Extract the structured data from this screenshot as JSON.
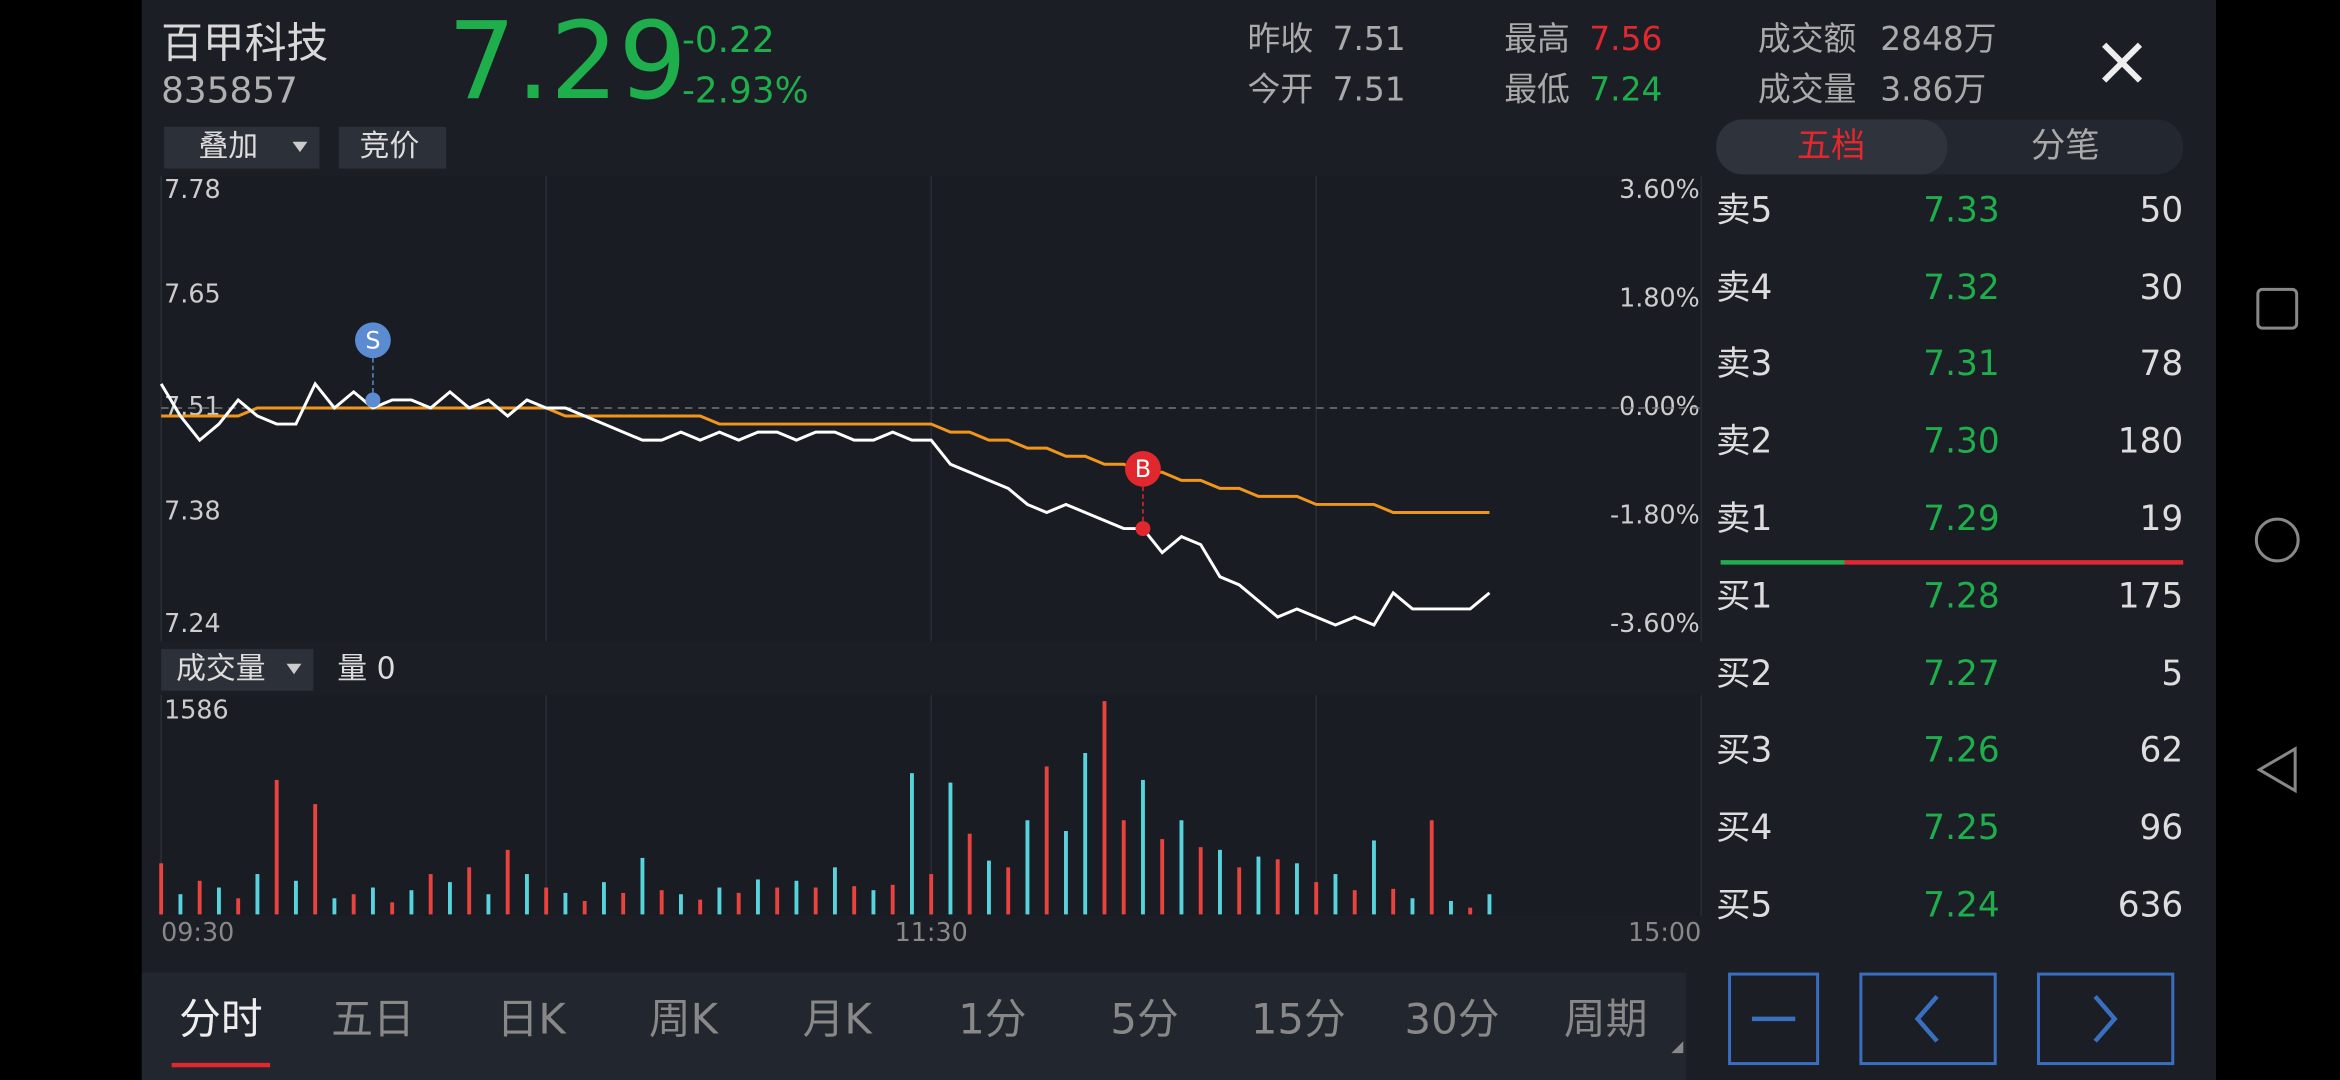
{
  "header": {
    "name": "百甲科技",
    "code": "835857",
    "price": "7.29",
    "change": "-0.22",
    "change_pct": "-2.93%",
    "stats": [
      {
        "label": "昨收",
        "value": "7.51"
      },
      {
        "label": "今开",
        "value": "7.51"
      },
      {
        "label": "最高",
        "value": "7.56"
      },
      {
        "label": "最低",
        "value": "7.24"
      },
      {
        "label": "成交额",
        "value": "2848万"
      },
      {
        "label": "成交量",
        "value": "3.86万"
      }
    ],
    "buttons": [
      "叠加",
      "竞价"
    ]
  },
  "chart_data": [
    {
      "type": "line",
      "x": [
        0,
        3,
        6,
        9,
        12,
        15,
        18,
        21,
        24,
        27,
        30,
        33,
        36,
        39,
        42,
        45,
        48,
        51,
        54,
        57,
        60,
        63,
        66,
        69,
        72,
        75,
        78,
        81,
        84,
        87,
        90,
        93,
        96,
        99,
        102,
        105,
        108,
        111,
        114,
        117,
        120,
        123,
        126,
        129,
        132,
        135,
        138,
        141,
        144,
        147,
        150,
        153,
        156,
        159,
        162,
        165,
        168,
        171,
        174,
        177,
        180,
        183,
        186,
        189,
        192,
        195,
        198,
        201,
        204,
        207
      ],
      "xlim": [
        0,
        240
      ],
      "xticks": [
        {
          "value": 0,
          "label": "09:30"
        },
        {
          "value": 120,
          "label": "11:30"
        },
        {
          "value": 240,
          "label": "15:00"
        }
      ],
      "ylim": [
        7.24,
        7.78
      ],
      "yticks": [
        7.78,
        7.65,
        7.51,
        7.38,
        7.24
      ],
      "y2lim": [
        -3.6,
        3.6
      ],
      "y2ticks": [
        {
          "value": 3.6,
          "label": "3.60%"
        },
        {
          "value": 1.8,
          "label": "1.80%"
        },
        {
          "value": 0,
          "label": "0.00%"
        },
        {
          "value": -1.8,
          "label": "-1.80%"
        },
        {
          "value": -3.6,
          "label": "-3.60%"
        }
      ],
      "series": [
        {
          "color": "#ffffff",
          "values": [
            7.54,
            7.5,
            7.47,
            7.49,
            7.52,
            7.5,
            7.49,
            7.49,
            7.54,
            7.51,
            7.53,
            7.51,
            7.52,
            7.52,
            7.51,
            7.53,
            7.51,
            7.52,
            7.5,
            7.52,
            7.51,
            7.51,
            7.5,
            7.49,
            7.48,
            7.47,
            7.47,
            7.48,
            7.47,
            7.48,
            7.47,
            7.48,
            7.48,
            7.47,
            7.48,
            7.48,
            7.47,
            7.47,
            7.48,
            7.47,
            7.47,
            7.44,
            7.43,
            7.42,
            7.41,
            7.39,
            7.38,
            7.39,
            7.38,
            7.37,
            7.36,
            7.36,
            7.33,
            7.35,
            7.34,
            7.3,
            7.29,
            7.27,
            7.25,
            7.26,
            7.25,
            7.24,
            7.25,
            7.24,
            7.28,
            7.26,
            7.26,
            7.26,
            7.26,
            7.28
          ]
        },
        {
          "color": "#f0961e",
          "values": [
            7.5,
            7.5,
            7.5,
            7.5,
            7.5,
            7.51,
            7.51,
            7.51,
            7.51,
            7.51,
            7.51,
            7.51,
            7.51,
            7.51,
            7.51,
            7.51,
            7.51,
            7.51,
            7.51,
            7.51,
            7.51,
            7.5,
            7.5,
            7.5,
            7.5,
            7.5,
            7.5,
            7.5,
            7.5,
            7.49,
            7.49,
            7.49,
            7.49,
            7.49,
            7.49,
            7.49,
            7.49,
            7.49,
            7.49,
            7.49,
            7.49,
            7.48,
            7.48,
            7.47,
            7.47,
            7.46,
            7.46,
            7.45,
            7.45,
            7.44,
            7.44,
            7.43,
            7.43,
            7.42,
            7.42,
            7.41,
            7.41,
            7.4,
            7.4,
            7.4,
            7.39,
            7.39,
            7.39,
            7.39,
            7.38,
            7.38,
            7.38,
            7.38,
            7.38,
            7.38
          ]
        }
      ],
      "annotations": [
        {
          "label": "S",
          "x": 33,
          "value": 7.52,
          "color": "#5b8bd0"
        },
        {
          "label": "B",
          "x": 153,
          "value": 7.36,
          "color": "#e0282e"
        }
      ]
    },
    {
      "type": "bar",
      "dropdown": "成交量",
      "current": "量 0",
      "ylim": [
        0,
        1586
      ],
      "yticks": [
        1586
      ],
      "series": [
        {
          "color": "#e8433f",
          "values": [
            380,
            null,
            250,
            null,
            120,
            null,
            1000,
            null,
            820,
            null,
            150,
            null,
            90,
            null,
            300,
            null,
            350,
            null,
            480,
            null,
            200,
            null,
            100,
            null,
            160,
            null,
            180,
            null,
            110,
            null,
            160,
            null,
            200,
            null,
            200,
            null,
            210,
            null,
            220,
            null,
            300,
            null,
            600,
            null,
            350,
            null,
            1100,
            null,
            null,
            1586,
            700,
            null,
            560,
            null,
            500,
            null,
            350,
            null,
            410,
            null,
            240,
            null,
            180,
            null,
            190,
            null,
            700,
            null,
            50,
            null
          ]
        },
        {
          "color": "#57d3dd",
          "values": [
            null,
            150,
            null,
            200,
            null,
            300,
            null,
            250,
            null,
            120,
            null,
            200,
            null,
            180,
            null,
            240,
            null,
            150,
            null,
            300,
            null,
            160,
            null,
            240,
            null,
            420,
            null,
            150,
            null,
            200,
            null,
            260,
            null,
            250,
            null,
            350,
            null,
            180,
            null,
            1050,
            null,
            980,
            null,
            400,
            null,
            700,
            null,
            620,
            1200,
            null,
            null,
            1000,
            null,
            700,
            null,
            480,
            null,
            430,
            null,
            380,
            null,
            300,
            null,
            550,
            null,
            120,
            null,
            100,
            null,
            150
          ]
        }
      ]
    }
  ],
  "order_book": {
    "tabs": [
      "五档",
      "分笔"
    ],
    "rows": [
      [
        "卖5",
        "7.33",
        "50"
      ],
      [
        "卖4",
        "7.32",
        "30"
      ],
      [
        "卖3",
        "7.31",
        "78"
      ],
      [
        "卖2",
        "7.30",
        "180"
      ],
      [
        "卖1",
        "7.29",
        "19"
      ],
      [
        "买1",
        "7.28",
        "175"
      ],
      [
        "买2",
        "7.27",
        "5"
      ],
      [
        "买3",
        "7.26",
        "62"
      ],
      [
        "买4",
        "7.25",
        "96"
      ],
      [
        "买5",
        "7.24",
        "636"
      ]
    ]
  },
  "period_tabs": [
    "分时",
    "五日",
    "日K",
    "周K",
    "月K",
    "1分",
    "5分",
    "15分",
    "30分",
    "周期"
  ]
}
